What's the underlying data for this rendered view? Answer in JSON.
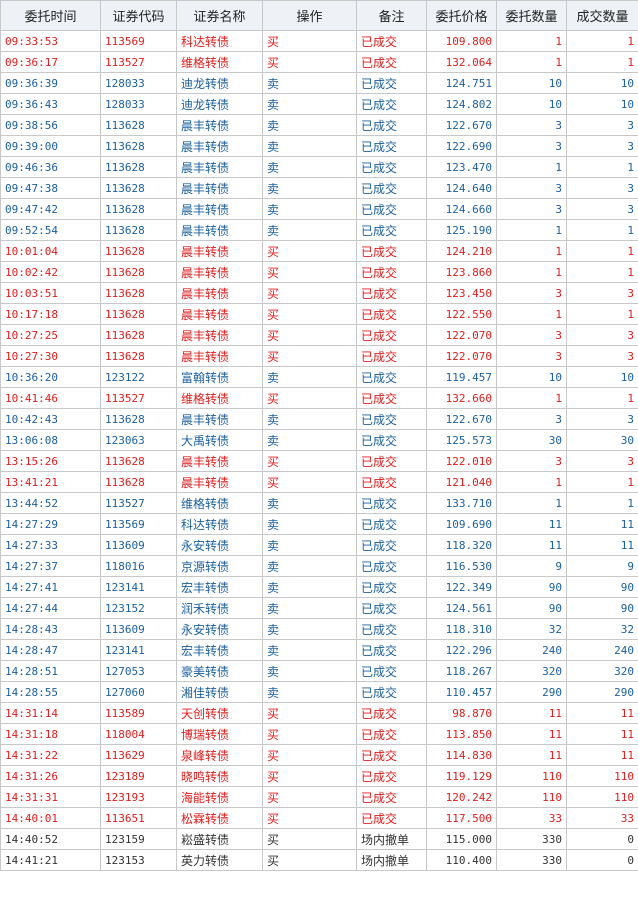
{
  "columns": [
    "委托时间",
    "证券代码",
    "证券名称",
    "操作",
    "备注",
    "委托价格",
    "委托数量",
    "成交数量"
  ],
  "colors": {
    "buy": "#e21b1b",
    "sell": "#1a5f9e",
    "cancel": "#333333",
    "header_bg": "#eef1f6"
  },
  "rows": [
    {
      "time": "09:33:53",
      "code": "113569",
      "name": "科达转债",
      "op": "买",
      "note": "已成交",
      "price": "109.800",
      "qty": "1",
      "filled": "1",
      "side": "buy"
    },
    {
      "time": "09:36:17",
      "code": "113527",
      "name": "维格转债",
      "op": "买",
      "note": "已成交",
      "price": "132.064",
      "qty": "1",
      "filled": "1",
      "side": "buy"
    },
    {
      "time": "09:36:39",
      "code": "128033",
      "name": "迪龙转债",
      "op": "卖",
      "note": "已成交",
      "price": "124.751",
      "qty": "10",
      "filled": "10",
      "side": "sell"
    },
    {
      "time": "09:36:43",
      "code": "128033",
      "name": "迪龙转债",
      "op": "卖",
      "note": "已成交",
      "price": "124.802",
      "qty": "10",
      "filled": "10",
      "side": "sell"
    },
    {
      "time": "09:38:56",
      "code": "113628",
      "name": "晨丰转债",
      "op": "卖",
      "note": "已成交",
      "price": "122.670",
      "qty": "3",
      "filled": "3",
      "side": "sell"
    },
    {
      "time": "09:39:00",
      "code": "113628",
      "name": "晨丰转债",
      "op": "卖",
      "note": "已成交",
      "price": "122.690",
      "qty": "3",
      "filled": "3",
      "side": "sell"
    },
    {
      "time": "09:46:36",
      "code": "113628",
      "name": "晨丰转债",
      "op": "卖",
      "note": "已成交",
      "price": "123.470",
      "qty": "1",
      "filled": "1",
      "side": "sell"
    },
    {
      "time": "09:47:38",
      "code": "113628",
      "name": "晨丰转债",
      "op": "卖",
      "note": "已成交",
      "price": "124.640",
      "qty": "3",
      "filled": "3",
      "side": "sell"
    },
    {
      "time": "09:47:42",
      "code": "113628",
      "name": "晨丰转债",
      "op": "卖",
      "note": "已成交",
      "price": "124.660",
      "qty": "3",
      "filled": "3",
      "side": "sell"
    },
    {
      "time": "09:52:54",
      "code": "113628",
      "name": "晨丰转债",
      "op": "卖",
      "note": "已成交",
      "price": "125.190",
      "qty": "1",
      "filled": "1",
      "side": "sell"
    },
    {
      "time": "10:01:04",
      "code": "113628",
      "name": "晨丰转债",
      "op": "买",
      "note": "已成交",
      "price": "124.210",
      "qty": "1",
      "filled": "1",
      "side": "buy"
    },
    {
      "time": "10:02:42",
      "code": "113628",
      "name": "晨丰转债",
      "op": "买",
      "note": "已成交",
      "price": "123.860",
      "qty": "1",
      "filled": "1",
      "side": "buy"
    },
    {
      "time": "10:03:51",
      "code": "113628",
      "name": "晨丰转债",
      "op": "买",
      "note": "已成交",
      "price": "123.450",
      "qty": "3",
      "filled": "3",
      "side": "buy"
    },
    {
      "time": "10:17:18",
      "code": "113628",
      "name": "晨丰转债",
      "op": "买",
      "note": "已成交",
      "price": "122.550",
      "qty": "1",
      "filled": "1",
      "side": "buy"
    },
    {
      "time": "10:27:25",
      "code": "113628",
      "name": "晨丰转债",
      "op": "买",
      "note": "已成交",
      "price": "122.070",
      "qty": "3",
      "filled": "3",
      "side": "buy"
    },
    {
      "time": "10:27:30",
      "code": "113628",
      "name": "晨丰转债",
      "op": "买",
      "note": "已成交",
      "price": "122.070",
      "qty": "3",
      "filled": "3",
      "side": "buy"
    },
    {
      "time": "10:36:20",
      "code": "123122",
      "name": "富翰转债",
      "op": "卖",
      "note": "已成交",
      "price": "119.457",
      "qty": "10",
      "filled": "10",
      "side": "sell"
    },
    {
      "time": "10:41:46",
      "code": "113527",
      "name": "维格转债",
      "op": "买",
      "note": "已成交",
      "price": "132.660",
      "qty": "1",
      "filled": "1",
      "side": "buy"
    },
    {
      "time": "10:42:43",
      "code": "113628",
      "name": "晨丰转债",
      "op": "卖",
      "note": "已成交",
      "price": "122.670",
      "qty": "3",
      "filled": "3",
      "side": "sell"
    },
    {
      "time": "13:06:08",
      "code": "123063",
      "name": "大禹转债",
      "op": "卖",
      "note": "已成交",
      "price": "125.573",
      "qty": "30",
      "filled": "30",
      "side": "sell"
    },
    {
      "time": "13:15:26",
      "code": "113628",
      "name": "晨丰转债",
      "op": "买",
      "note": "已成交",
      "price": "122.010",
      "qty": "3",
      "filled": "3",
      "side": "buy"
    },
    {
      "time": "13:41:21",
      "code": "113628",
      "name": "晨丰转债",
      "op": "买",
      "note": "已成交",
      "price": "121.040",
      "qty": "1",
      "filled": "1",
      "side": "buy"
    },
    {
      "time": "13:44:52",
      "code": "113527",
      "name": "维格转债",
      "op": "卖",
      "note": "已成交",
      "price": "133.710",
      "qty": "1",
      "filled": "1",
      "side": "sell"
    },
    {
      "time": "14:27:29",
      "code": "113569",
      "name": "科达转债",
      "op": "卖",
      "note": "已成交",
      "price": "109.690",
      "qty": "11",
      "filled": "11",
      "side": "sell"
    },
    {
      "time": "14:27:33",
      "code": "113609",
      "name": "永安转债",
      "op": "卖",
      "note": "已成交",
      "price": "118.320",
      "qty": "11",
      "filled": "11",
      "side": "sell"
    },
    {
      "time": "14:27:37",
      "code": "118016",
      "name": "京源转债",
      "op": "卖",
      "note": "已成交",
      "price": "116.530",
      "qty": "9",
      "filled": "9",
      "side": "sell"
    },
    {
      "time": "14:27:41",
      "code": "123141",
      "name": "宏丰转债",
      "op": "卖",
      "note": "已成交",
      "price": "122.349",
      "qty": "90",
      "filled": "90",
      "side": "sell"
    },
    {
      "time": "14:27:44",
      "code": "123152",
      "name": "润禾转债",
      "op": "卖",
      "note": "已成交",
      "price": "124.561",
      "qty": "90",
      "filled": "90",
      "side": "sell"
    },
    {
      "time": "14:28:43",
      "code": "113609",
      "name": "永安转债",
      "op": "卖",
      "note": "已成交",
      "price": "118.310",
      "qty": "32",
      "filled": "32",
      "side": "sell"
    },
    {
      "time": "14:28:47",
      "code": "123141",
      "name": "宏丰转债",
      "op": "卖",
      "note": "已成交",
      "price": "122.296",
      "qty": "240",
      "filled": "240",
      "side": "sell"
    },
    {
      "time": "14:28:51",
      "code": "127053",
      "name": "豪美转债",
      "op": "卖",
      "note": "已成交",
      "price": "118.267",
      "qty": "320",
      "filled": "320",
      "side": "sell"
    },
    {
      "time": "14:28:55",
      "code": "127060",
      "name": "湘佳转债",
      "op": "卖",
      "note": "已成交",
      "price": "110.457",
      "qty": "290",
      "filled": "290",
      "side": "sell"
    },
    {
      "time": "14:31:14",
      "code": "113589",
      "name": "天创转债",
      "op": "买",
      "note": "已成交",
      "price": "98.870",
      "qty": "11",
      "filled": "11",
      "side": "buy"
    },
    {
      "time": "14:31:18",
      "code": "118004",
      "name": "博瑞转债",
      "op": "买",
      "note": "已成交",
      "price": "113.850",
      "qty": "11",
      "filled": "11",
      "side": "buy"
    },
    {
      "time": "14:31:22",
      "code": "113629",
      "name": "泉峰转债",
      "op": "买",
      "note": "已成交",
      "price": "114.830",
      "qty": "11",
      "filled": "11",
      "side": "buy"
    },
    {
      "time": "14:31:26",
      "code": "123189",
      "name": "晓鸣转债",
      "op": "买",
      "note": "已成交",
      "price": "119.129",
      "qty": "110",
      "filled": "110",
      "side": "buy"
    },
    {
      "time": "14:31:31",
      "code": "123193",
      "name": "海能转债",
      "op": "买",
      "note": "已成交",
      "price": "120.242",
      "qty": "110",
      "filled": "110",
      "side": "buy"
    },
    {
      "time": "14:40:01",
      "code": "113651",
      "name": "松霖转债",
      "op": "买",
      "note": "已成交",
      "price": "117.500",
      "qty": "33",
      "filled": "33",
      "side": "buy"
    },
    {
      "time": "14:40:52",
      "code": "123159",
      "name": "崧盛转债",
      "op": "买",
      "note": "场内撤单",
      "price": "115.000",
      "qty": "330",
      "filled": "0",
      "side": "cancel"
    },
    {
      "time": "14:41:21",
      "code": "123153",
      "name": "英力转债",
      "op": "买",
      "note": "场内撤单",
      "price": "110.400",
      "qty": "330",
      "filled": "0",
      "side": "cancel"
    }
  ]
}
